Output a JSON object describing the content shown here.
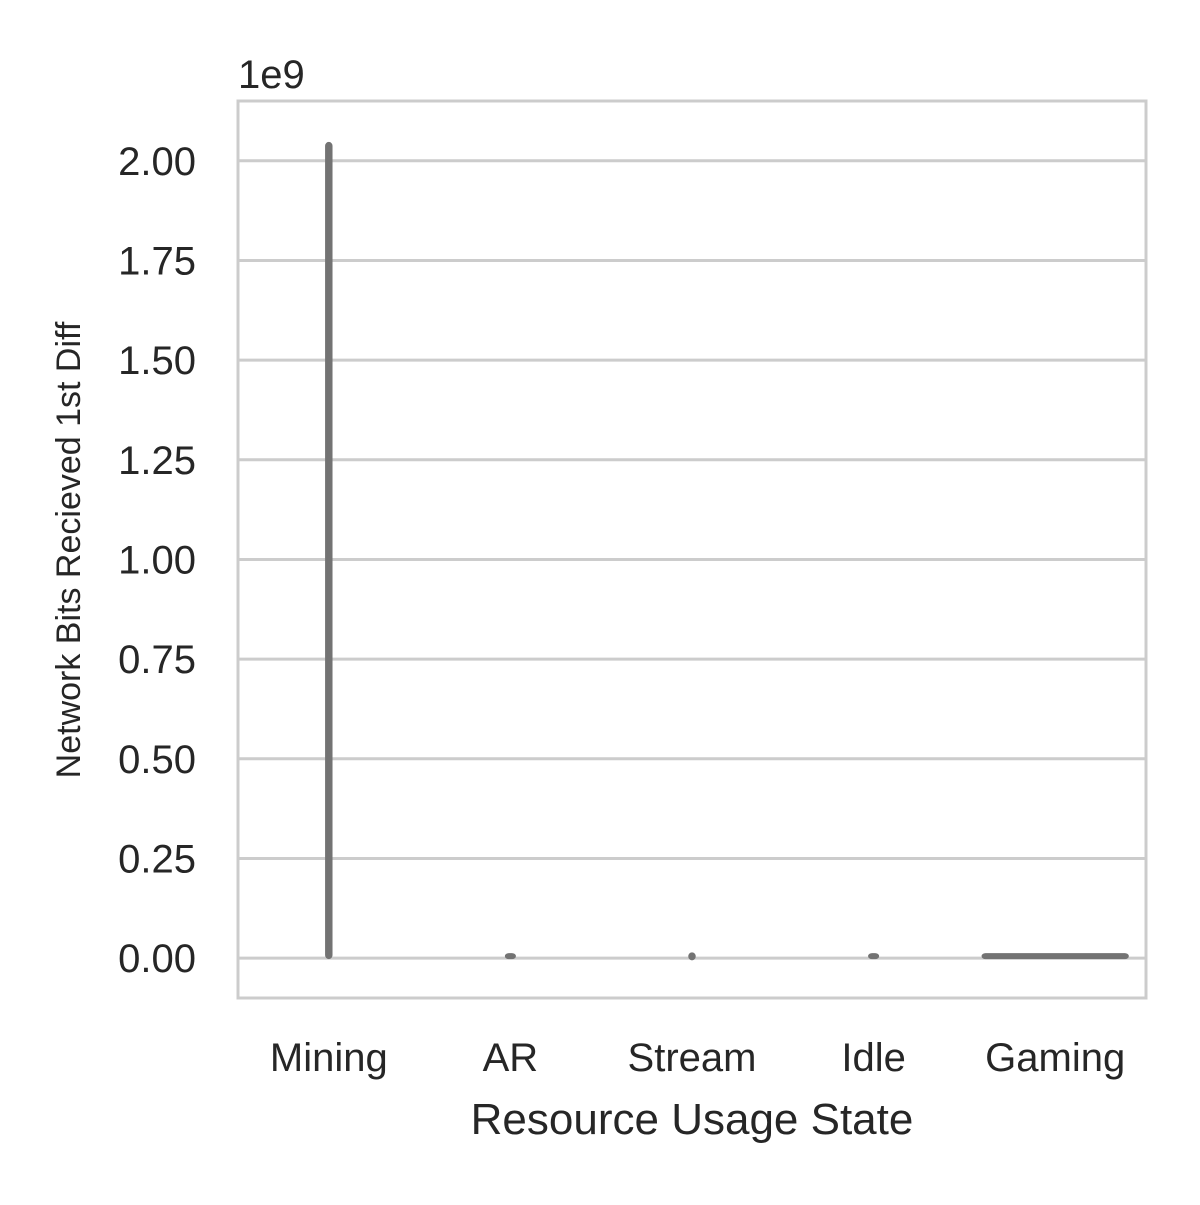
{
  "colors": {
    "background": "#ffffff",
    "grid": "#cccccc",
    "frame": "#cccccc",
    "mark": "#737373",
    "text": "#262626"
  },
  "chart_data": {
    "type": "violin",
    "title": "",
    "xlabel": "Resource Usage State",
    "ylabel": "Network Bits Recieved 1st Diff",
    "y_offset_label": "1e9",
    "y_scale": 1000000000,
    "ylim": [
      -100000000,
      2150000000
    ],
    "yticks": [
      0,
      250000000,
      500000000,
      750000000,
      1000000000,
      1250000000,
      1500000000,
      1750000000,
      2000000000
    ],
    "ytick_labels": [
      "0.00",
      "0.25",
      "0.50",
      "0.75",
      "1.00",
      "1.25",
      "1.50",
      "1.75",
      "2.00"
    ],
    "grid": true,
    "categories": [
      "Mining",
      "AR",
      "Stream",
      "Idle",
      "Gaming"
    ],
    "ranges": [
      {
        "category": "Mining",
        "min": 0,
        "max": 2045000000,
        "max_half_width": 0.03
      },
      {
        "category": "AR",
        "min": 0,
        "max": 3000000,
        "max_half_width": 0.05
      },
      {
        "category": "Stream",
        "min": -3000000,
        "max": 12000000,
        "max_half_width": 0.03
      },
      {
        "category": "Idle",
        "min": 0,
        "max": 2000000,
        "max_half_width": 0.05
      },
      {
        "category": "Gaming",
        "min": 0,
        "max": 1000000,
        "max_half_width": 0.8
      }
    ]
  }
}
